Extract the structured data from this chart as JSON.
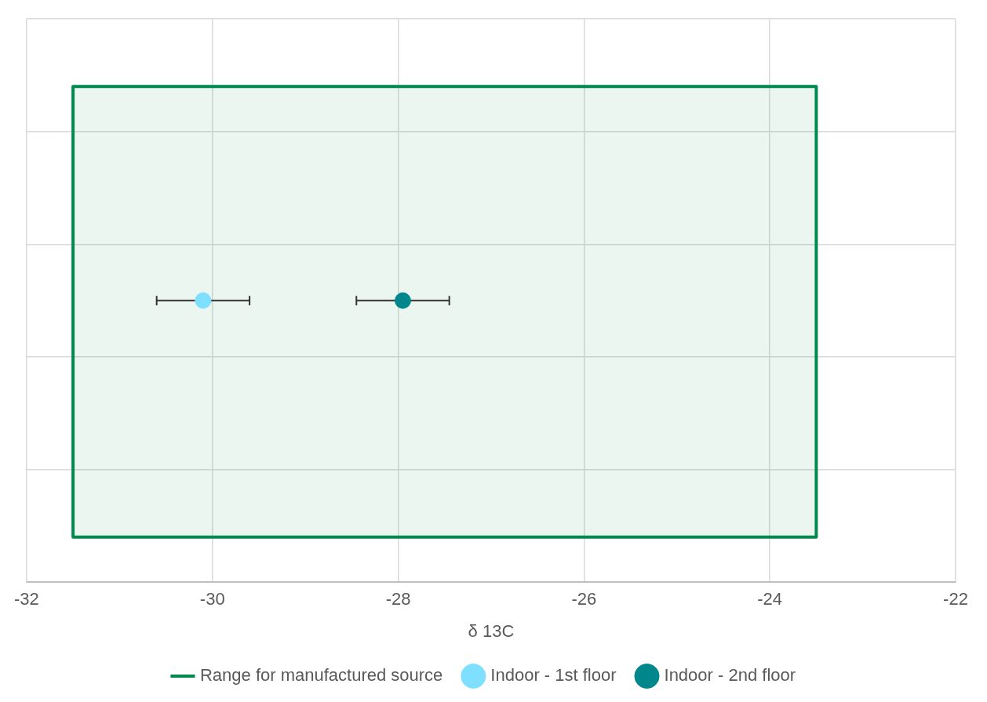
{
  "chart_data": {
    "type": "scatter",
    "orientation": "horizontal",
    "categories": [
      null
    ],
    "xlabel": "δ 13C",
    "xlim": [
      -32,
      -22
    ],
    "xticks": [
      -32,
      -30,
      -28,
      -26,
      -24,
      -22
    ],
    "grid": true,
    "legend": "bottom",
    "marker": "circle",
    "bands": [
      {
        "axis": "x",
        "from": -31.5,
        "to": -23.5,
        "label": "Range for manufactured source",
        "color": "#008a4e"
      }
    ],
    "series": [
      {
        "name": "Indoor - 1st floor",
        "color": "#7fdfff",
        "values": [
          -30.1
        ],
        "errors": [
          0.5
        ]
      },
      {
        "name": "Indoor - 2nd floor",
        "color": "#00878c",
        "values": [
          -27.95
        ],
        "errors": [
          0.5
        ]
      }
    ]
  }
}
